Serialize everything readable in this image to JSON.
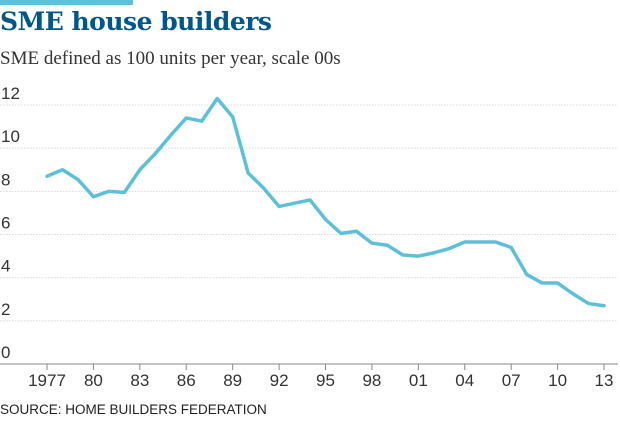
{
  "header": {
    "title": "SME house builders",
    "subtitle": "SME defined as 100 units per year, scale 00s"
  },
  "footer": {
    "source": "SOURCE: HOME BUILDERS FEDERATION"
  },
  "colors": {
    "line": "#5bc0d8",
    "title": "#005689",
    "grid": "#d9d9d9",
    "axis": "#888888"
  },
  "chart_data": {
    "type": "line",
    "title": "SME house builders",
    "subtitle": "SME defined as 100 units per year, scale 00s",
    "xlabel": "",
    "ylabel": "",
    "xlim": [
      1977,
      2013
    ],
    "ylim": [
      0,
      12
    ],
    "yticks": [
      0,
      2,
      4,
      6,
      8,
      10,
      12
    ],
    "xticks": [
      {
        "value": 1977,
        "label": "1977"
      },
      {
        "value": 1980,
        "label": "80"
      },
      {
        "value": 1983,
        "label": "83"
      },
      {
        "value": 1986,
        "label": "86"
      },
      {
        "value": 1989,
        "label": "89"
      },
      {
        "value": 1992,
        "label": "92"
      },
      {
        "value": 1995,
        "label": "95"
      },
      {
        "value": 1998,
        "label": "98"
      },
      {
        "value": 2001,
        "label": "01"
      },
      {
        "value": 2004,
        "label": "04"
      },
      {
        "value": 2007,
        "label": "07"
      },
      {
        "value": 2010,
        "label": "10"
      },
      {
        "value": 2013,
        "label": "13"
      }
    ],
    "grid": true,
    "legend": "none",
    "x": [
      1977,
      1978,
      1979,
      1980,
      1981,
      1982,
      1983,
      1984,
      1985,
      1986,
      1987,
      1988,
      1989,
      1990,
      1991,
      1992,
      1993,
      1994,
      1995,
      1996,
      1997,
      1998,
      1999,
      2000,
      2001,
      2002,
      2003,
      2004,
      2005,
      2006,
      2007,
      2008,
      2009,
      2010,
      2011,
      2012,
      2013
    ],
    "series": [
      {
        "values": [
          8.7,
          9.0,
          8.55,
          7.75,
          8.0,
          7.95,
          9.0,
          9.75,
          10.6,
          11.4,
          11.25,
          12.3,
          11.45,
          8.85,
          8.15,
          7.3,
          7.45,
          7.6,
          6.7,
          6.05,
          6.15,
          5.6,
          5.5,
          5.05,
          5.0,
          5.15,
          5.35,
          5.65,
          5.65,
          5.65,
          5.4,
          4.15,
          3.75,
          3.75,
          3.25,
          2.8,
          2.7
        ]
      }
    ]
  }
}
